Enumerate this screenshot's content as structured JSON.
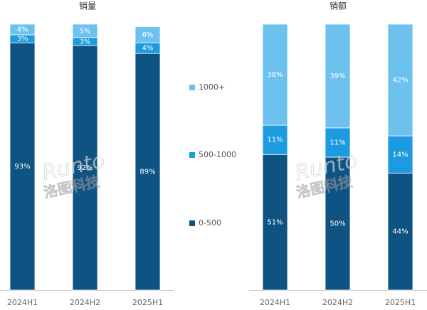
{
  "chart_data": [
    {
      "type": "bar",
      "stacked": true,
      "title": "销量",
      "categories": [
        "2024H1",
        "2024H2",
        "2025H1"
      ],
      "ylim": [
        0,
        100
      ],
      "series": [
        {
          "name": "0-500",
          "color": "#0f5383",
          "values": [
            93,
            92,
            89
          ],
          "value_labels": [
            "93%",
            "92%",
            "89%"
          ]
        },
        {
          "name": "500-1000",
          "color": "#1c9be0",
          "values": [
            3,
            3,
            4
          ],
          "value_labels": [
            "3%",
            "3%",
            "4%"
          ]
        },
        {
          "name": "1000+",
          "color": "#6cc1ef",
          "values": [
            4,
            5,
            6
          ],
          "value_labels": [
            "4%",
            "5%",
            "6%"
          ]
        }
      ]
    },
    {
      "type": "bar",
      "stacked": true,
      "title": "销额",
      "categories": [
        "2024H1",
        "2024H2",
        "2025H1"
      ],
      "ylim": [
        0,
        100
      ],
      "series": [
        {
          "color": "#0f5383",
          "values": [
            51,
            50,
            44
          ],
          "value_labels": [
            "51%",
            "50%",
            "44%"
          ]
        },
        {
          "color": "#1c9be0",
          "values": [
            11,
            11,
            14
          ],
          "value_labels": [
            "11%",
            "11%",
            "14%"
          ]
        },
        {
          "color": "#6cc1ef",
          "values": [
            38,
            39,
            42
          ],
          "value_labels": [
            "38%",
            "39%",
            "42%"
          ]
        }
      ]
    }
  ],
  "watermark": {
    "brand": "Runto",
    "company": "洛图科技"
  }
}
